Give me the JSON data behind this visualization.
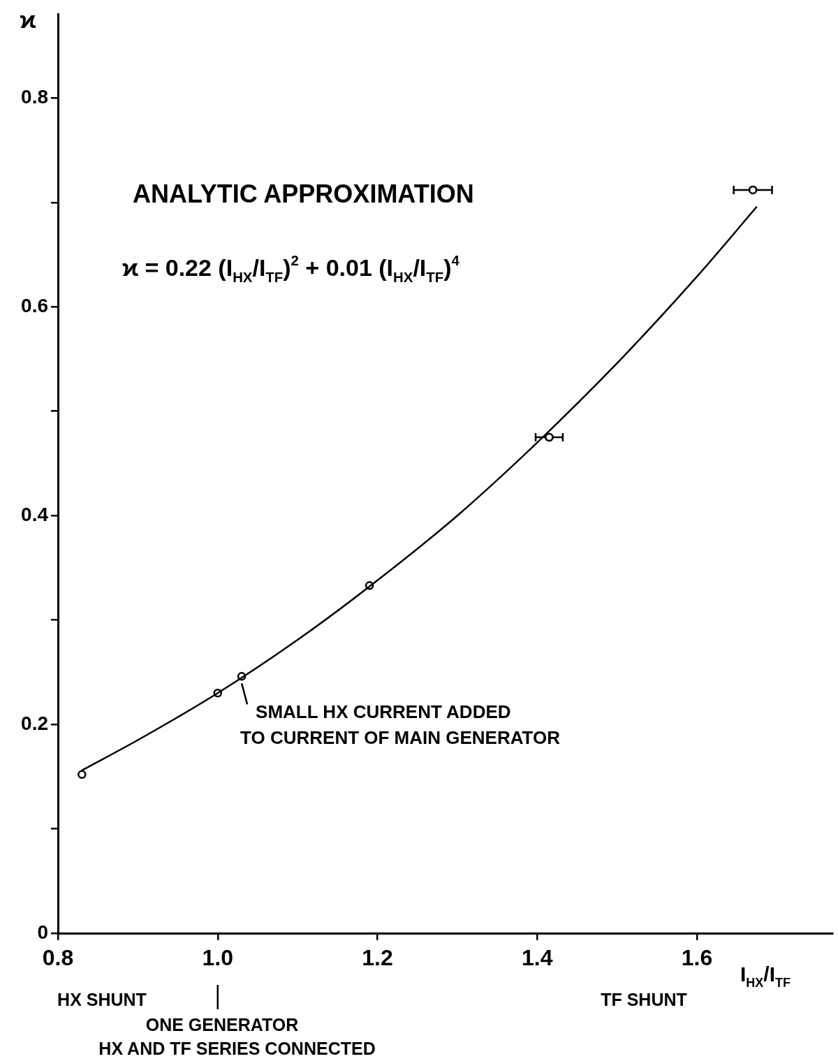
{
  "chart_data": {
    "type": "scatter",
    "title": "ANALYTIC APPROXIMATION",
    "subtitle": "ϰ = 0.22 (I$_{HX}$/I$_{TF}$)$^{2}$ + 0.01 (I$_{HX}$/I$_{TF}$)$^{4}$",
    "xlabel": "I$_{HX}$/I$_{TF}$",
    "ylabel": "ϰ",
    "series": [
      {
        "type": "line",
        "color": "#000000",
        "marker": "none",
        "x": [
          0.83,
          0.9,
          1.0,
          1.1,
          1.2,
          1.3,
          1.4,
          1.5,
          1.6,
          1.675
        ],
        "values": [
          0.156,
          0.185,
          0.23,
          0.281,
          0.338,
          0.4,
          0.47,
          0.546,
          0.629,
          0.696
        ]
      },
      {
        "color": "#000000",
        "marker": "circle",
        "x": [
          0.83,
          1.0,
          1.03,
          1.19,
          1.415,
          1.67
        ],
        "values": [
          0.152,
          0.23,
          0.246,
          0.333,
          0.475,
          0.712
        ],
        "xerrors": [
          null,
          null,
          null,
          null,
          0.017,
          0.024
        ]
      }
    ],
    "annotations": [
      {
        "text": "SMALL HX CURRENT ADDED\nTO CURRENT OF MAIN GENERATOR",
        "x": 1.03,
        "y": 0.246
      },
      "HX SHUNT",
      "ONE GENERATOR\nHX AND TF SERIES CONNECTED",
      "TF SHUNT"
    ],
    "xlim": [
      0.8,
      1.77
    ],
    "ylim": [
      0,
      0.88
    ],
    "xticks": [
      0.8,
      {
        "value": 1.0,
        "label": "1.0"
      },
      1.2,
      1.4,
      1.6
    ],
    "yticks": [
      0,
      {
        "value": 0.1,
        "label": null
      },
      0.2,
      {
        "value": 0.3,
        "label": null
      },
      0.4,
      {
        "value": 0.5,
        "label": null
      },
      0.6,
      {
        "value": 0.7,
        "label": null
      },
      0.8
    ],
    "grid": false,
    "legend": false
  }
}
